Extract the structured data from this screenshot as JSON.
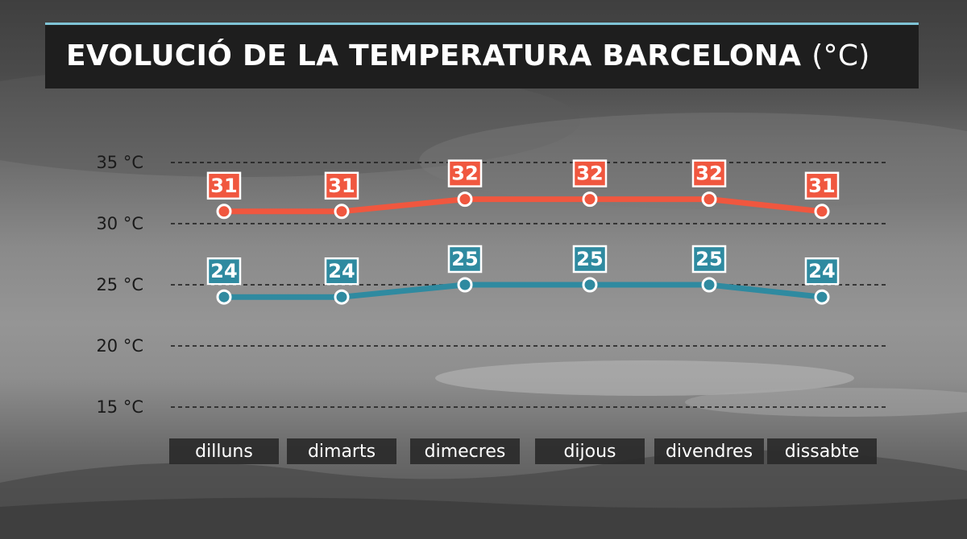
{
  "title": {
    "main": "EVOLUCIÓ DE LA TEMPERATURA BARCELONA",
    "unit": "(°C)"
  },
  "colors": {
    "max_series": "#f0573f",
    "min_series": "#2f8aa0",
    "title_bar": "#1e1e1e",
    "title_accent": "#7fc4d6",
    "day_box": "#2a2a2a"
  },
  "chart_data": {
    "type": "line",
    "categories": [
      "dilluns",
      "dimarts",
      "dimecres",
      "dijous",
      "divendres",
      "dissabte"
    ],
    "series": [
      {
        "values": [
          31,
          31,
          32,
          32,
          32,
          31
        ]
      },
      {
        "values": [
          24,
          24,
          25,
          25,
          25,
          24
        ]
      }
    ],
    "y_ticks": [
      {
        "value": 35,
        "label": "35 °C"
      },
      {
        "value": 30,
        "label": "30 °C"
      },
      {
        "value": 25,
        "label": "25 °C"
      },
      {
        "value": 20,
        "label": "20 °C"
      },
      {
        "value": 15,
        "label": "15 °C"
      }
    ],
    "ylim": [
      15,
      35
    ],
    "grid": true,
    "data_labels": true
  }
}
